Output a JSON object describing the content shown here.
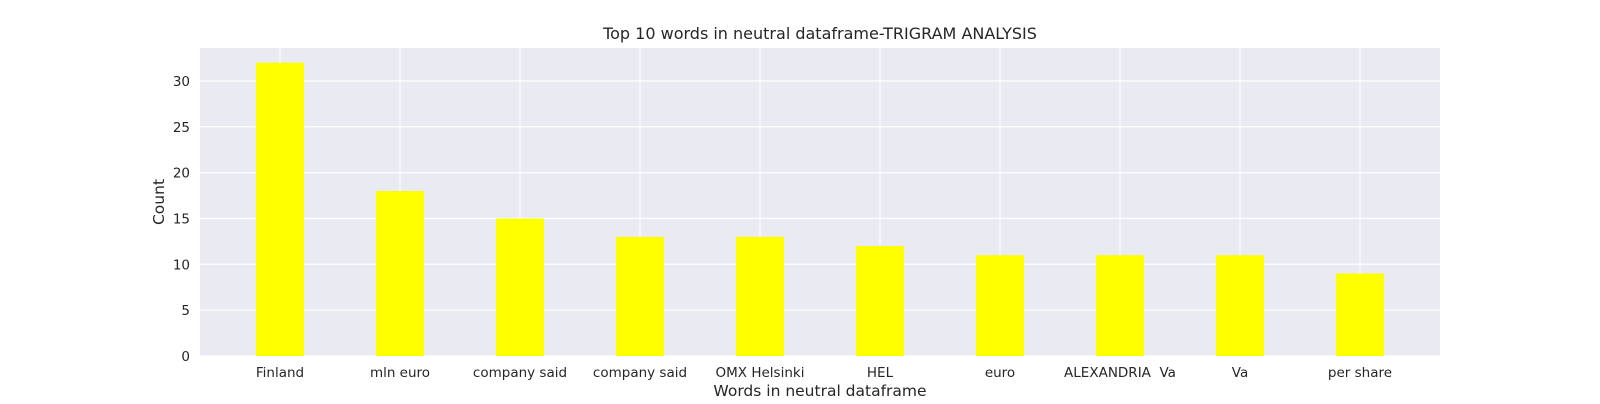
{
  "chart_data": {
    "type": "bar",
    "title": "Top 10 words in neutral dataframe-TRIGRAM ANALYSIS",
    "xlabel": "Words in neutral dataframe",
    "ylabel": "Count",
    "categories": [
      "Finland",
      "mln euro",
      "company said",
      "company said",
      "OMX Helsinki",
      "HEL",
      "euro",
      "ALEXANDRIA  Va",
      "Va",
      "per share"
    ],
    "values": [
      32,
      18,
      15,
      13,
      13,
      12,
      11,
      11,
      11,
      9
    ],
    "ylim": [
      0,
      33.6
    ],
    "yticks": [
      0,
      5,
      10,
      15,
      20,
      25,
      30
    ],
    "grid": true,
    "colors": {
      "bar": "#ffff00",
      "plot_background": "#eaeaf2",
      "grid": "#ffffff",
      "text": "#262626"
    }
  }
}
